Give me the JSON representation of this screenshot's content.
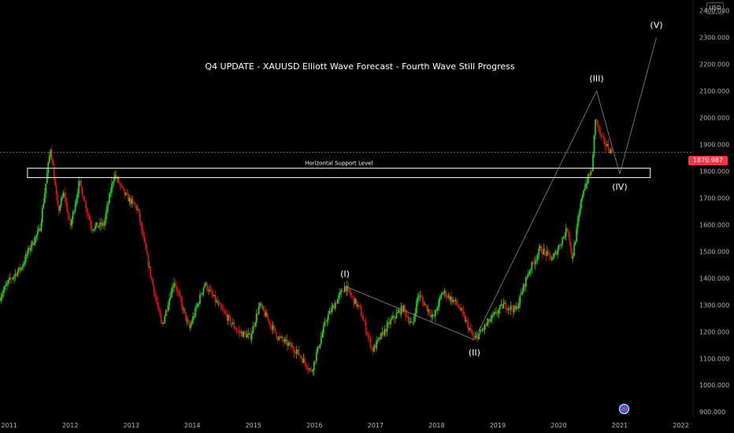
{
  "chart_data": {
    "type": "candlestick",
    "title": "Q4 UPDATE - XAUUSD Elliott Wave Forecast - Fourth Wave Still Progress",
    "currency": "USD",
    "last_price": "1870.987",
    "ylim": [
      880,
      2440
    ],
    "y_ticks": [
      900,
      1000,
      1100,
      1200,
      1300,
      1400,
      1500,
      1600,
      1700,
      1800,
      1900,
      2000,
      2100,
      2200,
      2300,
      2400
    ],
    "y_tick_labels": [
      "900.000",
      "1000.000",
      "1100.000",
      "1200.000",
      "1300.000",
      "1400.000",
      "1500.000",
      "1600.000",
      "1700.000",
      "1800.000",
      "1900.000",
      "2000.000",
      "2100.000",
      "2200.000",
      "2300.000",
      "2400.000"
    ],
    "xlim": [
      2010.85,
      2022.2
    ],
    "x_ticks": [
      2011,
      2012,
      2013,
      2014,
      2015,
      2016,
      2017,
      2018,
      2019,
      2020,
      2021,
      2022
    ],
    "x_tick_labels": [
      "2011",
      "2012",
      "2013",
      "2014",
      "2015",
      "2016",
      "2017",
      "2018",
      "2019",
      "2020",
      "2021",
      "2022"
    ],
    "price_path": [
      [
        2010.85,
        1330
      ],
      [
        2011.0,
        1390
      ],
      [
        2011.2,
        1440
      ],
      [
        2011.35,
        1520
      ],
      [
        2011.5,
        1580
      ],
      [
        2011.68,
        1890
      ],
      [
        2011.8,
        1650
      ],
      [
        2011.9,
        1720
      ],
      [
        2012.0,
        1590
      ],
      [
        2012.15,
        1760
      ],
      [
        2012.35,
        1590
      ],
      [
        2012.55,
        1600
      ],
      [
        2012.72,
        1790
      ],
      [
        2012.9,
        1710
      ],
      [
        2013.1,
        1660
      ],
      [
        2013.3,
        1430
      ],
      [
        2013.5,
        1220
      ],
      [
        2013.7,
        1390
      ],
      [
        2013.95,
        1210
      ],
      [
        2014.2,
        1380
      ],
      [
        2014.45,
        1290
      ],
      [
        2014.75,
        1200
      ],
      [
        2014.95,
        1180
      ],
      [
        2015.1,
        1300
      ],
      [
        2015.4,
        1180
      ],
      [
        2015.7,
        1130
      ],
      [
        2015.95,
        1050
      ],
      [
        2016.2,
        1250
      ],
      [
        2016.5,
        1370
      ],
      [
        2016.75,
        1280
      ],
      [
        2016.95,
        1130
      ],
      [
        2017.25,
        1240
      ],
      [
        2017.45,
        1290
      ],
      [
        2017.6,
        1220
      ],
      [
        2017.7,
        1340
      ],
      [
        2017.95,
        1250
      ],
      [
        2018.1,
        1350
      ],
      [
        2018.35,
        1300
      ],
      [
        2018.62,
        1170
      ],
      [
        2018.9,
        1250
      ],
      [
        2019.1,
        1300
      ],
      [
        2019.3,
        1280
      ],
      [
        2019.5,
        1420
      ],
      [
        2019.7,
        1510
      ],
      [
        2019.9,
        1470
      ],
      [
        2020.15,
        1590
      ],
      [
        2020.22,
        1470
      ],
      [
        2020.4,
        1730
      ],
      [
        2020.55,
        1810
      ],
      [
        2020.6,
        2000
      ],
      [
        2020.7,
        1920
      ],
      [
        2020.8,
        1890
      ],
      [
        2020.87,
        1870
      ]
    ],
    "annotations": {
      "support_label": "Horizontal Support Level",
      "support_range": [
        1776,
        1811
      ],
      "support_x": [
        2011.3,
        2021.5
      ],
      "waves": [
        {
          "label": "(I)",
          "x": 2016.5,
          "y": 1370
        },
        {
          "label": "(II)",
          "x": 2018.62,
          "y": 1170
        },
        {
          "label": "(III)",
          "x": 2020.62,
          "y": 2100
        },
        {
          "label": "(IV)",
          "x": 2021.0,
          "y": 1790
        },
        {
          "label": "(V)",
          "x": 2021.6,
          "y": 2300
        }
      ]
    },
    "colors": {
      "up": "#22dd22",
      "down": "#e01515",
      "background": "#000000",
      "forecast_line": "#888888"
    }
  }
}
